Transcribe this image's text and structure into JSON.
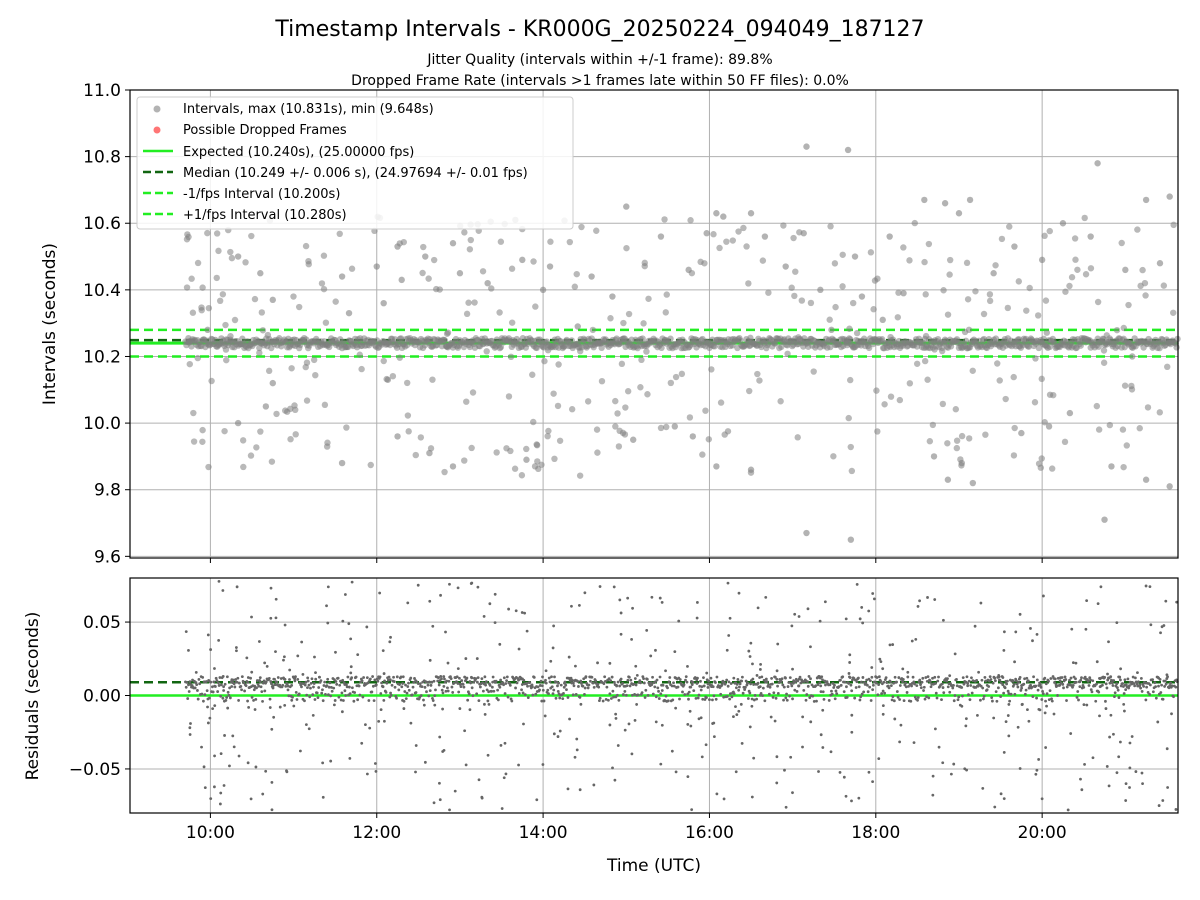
{
  "figure": {
    "title": "Timestamp Intervals - KR000G_20250224_094049_187127",
    "subtitle_1": "Jitter Quality (intervals within +/-1 frame): 89.8%",
    "subtitle_2": "Dropped Frame Rate (intervals >1 frames late within 50 FF files): 0.0%"
  },
  "colors": {
    "points": "#808080",
    "dropped": "#ff6666",
    "expected": "#22ee22",
    "median": "#116611",
    "interval": "#22ee22",
    "grid": "#b0b0b0"
  },
  "chart_data": [
    {
      "type": "scatter",
      "ylabel": "Intervals (seconds)",
      "xlabel": "",
      "x_is_time": true,
      "xlim": [
        "09:02",
        "21:38"
      ],
      "ylim": [
        9.595,
        11.0
      ],
      "yticks": [
        "9.6",
        "9.8",
        "10.0",
        "10.2",
        "10.4",
        "10.6",
        "10.8",
        "11.0"
      ],
      "xticks": [
        "10:00",
        "12:00",
        "14:00",
        "16:00",
        "18:00",
        "20:00"
      ],
      "grid": true,
      "legend_position": "upper-left",
      "x_range_data": [
        "09:42",
        "21:38"
      ],
      "lines": {
        "expected": 10.24,
        "median": 10.249,
        "minus_one": 10.2,
        "plus_one": 10.28
      },
      "series": [
        {
          "name": "Intervals, max (10.831s), min (9.648s)",
          "max": 10.831,
          "min": 9.648,
          "typical": 10.24
        },
        {
          "name": "Possible Dropped Frames",
          "count": 0
        },
        {
          "name": "Expected (10.240s), (25.00000 fps)"
        },
        {
          "name": "Median (10.249 +/- 0.006 s), (24.97694 +/- 0.01 fps)"
        },
        {
          "name": "-1/fps Interval (10.200s)"
        },
        {
          "name": "+1/fps Interval (10.280s)"
        }
      ],
      "legend": [
        "Intervals, max (10.831s), min (9.648s)",
        "Possible Dropped Frames",
        "Expected (10.240s), (25.00000 fps)",
        "Median (10.249 +/- 0.006 s), (24.97694 +/- 0.01 fps)",
        "-1/fps Interval (10.200s)",
        "+1/fps Interval (10.280s)"
      ],
      "outliers": [
        [
          "09:58",
          10.28
        ],
        [
          "10:20",
          10.5
        ],
        [
          "10:20",
          10.0
        ],
        [
          "10:36",
          10.45
        ],
        [
          "10:40",
          10.05
        ],
        [
          "10:45",
          10.37
        ],
        [
          "10:45",
          10.12
        ],
        [
          "11:35",
          10.44
        ],
        [
          "11:35",
          9.88
        ],
        [
          "11:40",
          10.33
        ],
        [
          "12:00",
          10.47
        ],
        [
          "12:05",
          10.36
        ],
        [
          "12:08",
          10.13
        ],
        [
          "12:15",
          10.53
        ],
        [
          "12:15",
          9.96
        ],
        [
          "12:18",
          10.43
        ],
        [
          "12:35",
          10.5
        ],
        [
          "12:38",
          9.91
        ],
        [
          "12:55",
          10.54
        ],
        [
          "12:55",
          9.87
        ],
        [
          "13:00",
          10.45
        ],
        [
          "13:20",
          10.42
        ],
        [
          "13:40",
          10.61
        ],
        [
          "13:45",
          10.49
        ],
        [
          "13:48",
          9.89
        ],
        [
          "14:00",
          10.4
        ],
        [
          "14:05",
          10.47
        ],
        [
          "14:25",
          10.29
        ],
        [
          "14:35",
          10.44
        ],
        [
          "14:50",
          10.38
        ],
        [
          "15:00",
          10.65
        ],
        [
          "15:05",
          9.95
        ],
        [
          "15:25",
          10.56
        ],
        [
          "15:35",
          9.99
        ],
        [
          "15:45",
          10.46
        ],
        [
          "15:48",
          9.96
        ],
        [
          "15:58",
          10.57
        ],
        [
          "16:05",
          10.63
        ],
        [
          "16:05",
          9.87
        ],
        [
          "16:10",
          10.62
        ],
        [
          "16:30",
          10.63
        ],
        [
          "16:30",
          9.86
        ],
        [
          "16:40",
          10.56
        ],
        [
          "16:55",
          10.47
        ],
        [
          "17:08",
          10.57
        ],
        [
          "17:10",
          10.83
        ],
        [
          "17:10",
          9.67
        ],
        [
          "17:20",
          10.4
        ],
        [
          "17:28",
          10.28
        ],
        [
          "17:40",
          10.82
        ],
        [
          "17:42",
          9.65
        ],
        [
          "17:45",
          10.5
        ],
        [
          "17:50",
          10.38
        ],
        [
          "18:05",
          10.31
        ],
        [
          "18:10",
          10.56
        ],
        [
          "18:20",
          10.39
        ],
        [
          "18:35",
          10.67
        ],
        [
          "18:42",
          9.9
        ],
        [
          "18:50",
          10.66
        ],
        [
          "18:52",
          9.83
        ],
        [
          "19:00",
          10.63
        ],
        [
          "19:02",
          9.88
        ],
        [
          "19:08",
          10.67
        ],
        [
          "19:10",
          9.82
        ],
        [
          "19:25",
          10.45
        ],
        [
          "19:40",
          10.53
        ],
        [
          "19:45",
          9.97
        ],
        [
          "20:00",
          10.49
        ],
        [
          "20:05",
          9.99
        ],
        [
          "20:15",
          10.6
        ],
        [
          "20:20",
          10.03
        ],
        [
          "20:35",
          10.56
        ],
        [
          "20:40",
          10.78
        ],
        [
          "20:45",
          9.71
        ],
        [
          "20:50",
          9.87
        ],
        [
          "21:00",
          10.46
        ],
        [
          "21:05",
          10.2
        ],
        [
          "21:15",
          10.67
        ],
        [
          "21:15",
          9.83
        ],
        [
          "21:25",
          10.48
        ],
        [
          "21:32",
          10.68
        ],
        [
          "21:32",
          9.81
        ]
      ]
    },
    {
      "type": "scatter",
      "ylabel": "Residuals (seconds)",
      "xlabel": "Time (UTC)",
      "x_is_time": true,
      "xlim": [
        "09:02",
        "21:38"
      ],
      "ylim": [
        -0.08,
        0.08
      ],
      "yticks": [
        "−0.05",
        "0.00",
        "0.05"
      ],
      "ytick_values": [
        -0.05,
        0.0,
        0.05
      ],
      "xticks": [
        "10:00",
        "12:00",
        "14:00",
        "16:00",
        "18:00",
        "20:00"
      ],
      "grid": true,
      "lines": {
        "zero": 0.0,
        "median_offset": 0.009
      },
      "series": [
        {
          "name": "Residuals",
          "typical_bands": [
            0.009,
            0.0
          ]
        }
      ]
    }
  ]
}
